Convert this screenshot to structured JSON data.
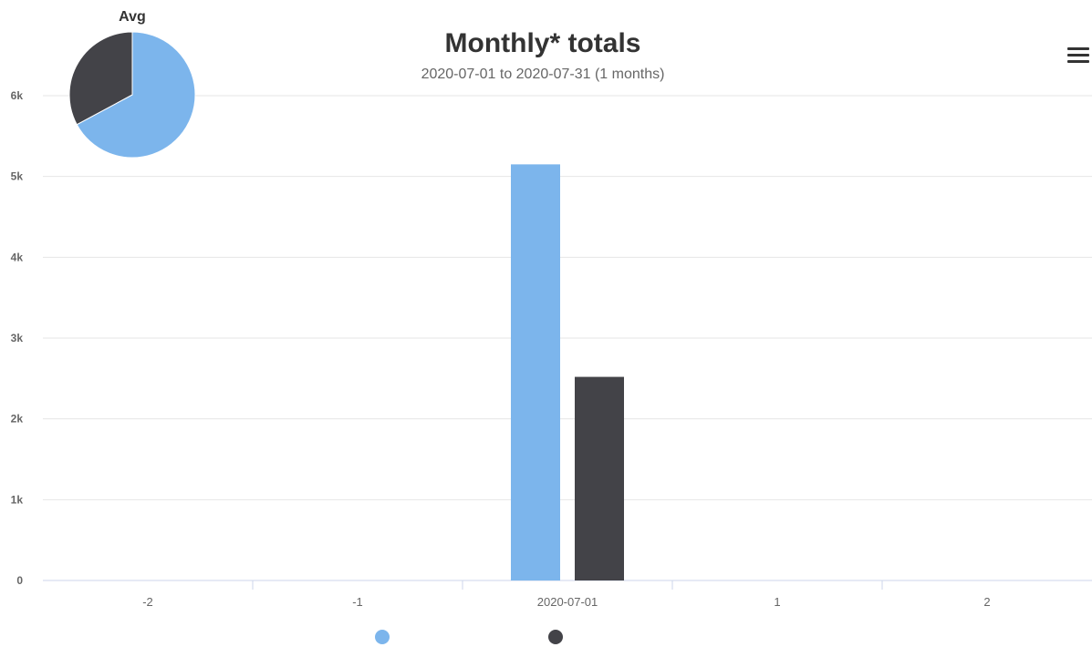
{
  "colors": {
    "series_1": "#7cb5ec",
    "series_2": "#434348",
    "grid": "#e6e6e6",
    "axis_line": "#ccd6eb",
    "text": "#333333",
    "subtitle": "#666666"
  },
  "menu": {
    "icon": "hamburger-menu-icon"
  },
  "chart_data": [
    {
      "type": "bar",
      "title": "Monthly* totals",
      "subtitle": "2020-07-01 to 2020-07-31 (1 months)",
      "categories": [
        "-2",
        "-1",
        "2020-07-01",
        "1",
        "2"
      ],
      "y_ticks": [
        "0",
        "1k",
        "2k",
        "3k",
        "4k",
        "5k",
        "6k"
      ],
      "ylim": [
        0,
        6000
      ],
      "grid": true,
      "legend": "bottom-center",
      "series": [
        {
          "color": "#7cb5ec",
          "values": [
            null,
            null,
            5150,
            null,
            null
          ]
        },
        {
          "color": "#434348",
          "values": [
            null,
            null,
            2520,
            null,
            null
          ]
        }
      ]
    },
    {
      "type": "pie",
      "title": "Avg",
      "placement": "top-left",
      "slices": [
        {
          "color": "#7cb5ec",
          "value": 5150
        },
        {
          "color": "#434348",
          "value": 2520
        }
      ]
    }
  ]
}
